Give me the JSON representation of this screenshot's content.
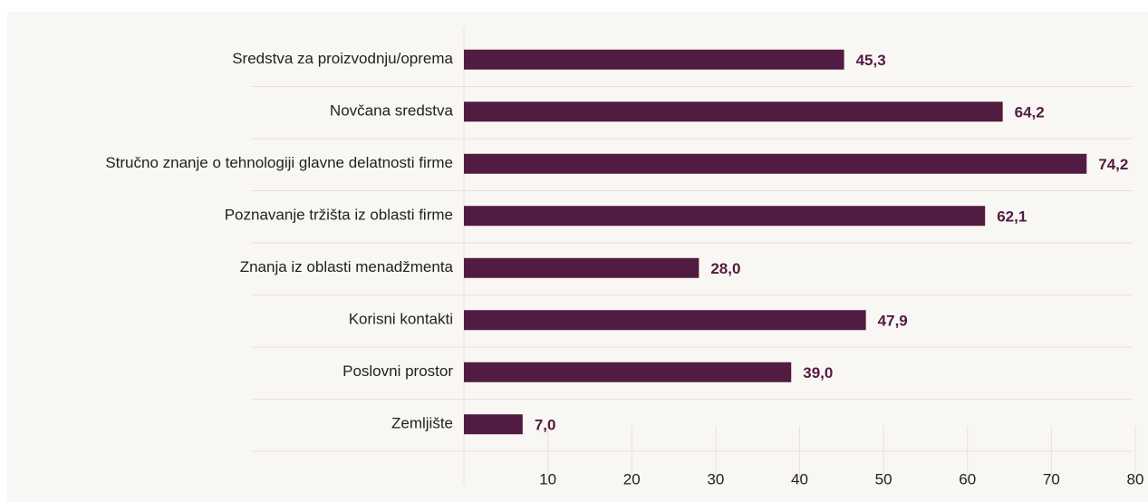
{
  "chart_data": {
    "type": "bar",
    "orientation": "horizontal",
    "categories": [
      "Sredstva za proizvodnju/oprema",
      "Novčana sredstva",
      "Stručno znanje o tehnologiji glavne delatnosti firme",
      "Poznavanje tržišta iz oblasti firme",
      "Znanja iz oblasti menadžmenta",
      "Korisni kontakti",
      "Poslovni prostor",
      "Zemljište"
    ],
    "values": [
      45.3,
      64.2,
      74.2,
      62.1,
      28.0,
      47.9,
      39.0,
      7.0
    ],
    "value_labels": [
      "45,3",
      "64,2",
      "74,2",
      "62,1",
      "28,0",
      "47,9",
      "39,0",
      "7,0"
    ],
    "color": "#521b41",
    "xlim": [
      0,
      80
    ],
    "xticks": [
      10,
      20,
      30,
      40,
      50,
      60,
      70,
      80
    ],
    "grid": true
  }
}
